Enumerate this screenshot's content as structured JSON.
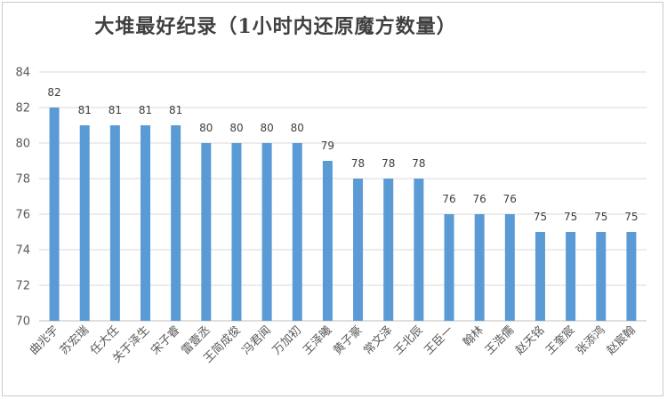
{
  "chart_data": {
    "type": "bar",
    "title": "大堆最好纪录（1小时内还原魔方数量）",
    "xlabel": "",
    "ylabel": "",
    "ylim": [
      70,
      84
    ],
    "yticks": [
      70,
      72,
      74,
      76,
      78,
      80,
      82,
      84
    ],
    "grid": true,
    "legend": "none",
    "bar_color": "#5b9bd5",
    "categories": [
      "曲兆宇",
      "苏宏瑞",
      "任大任",
      "关于泽生",
      "宋子睿",
      "雷壹丞",
      "王简成俊",
      "冯君闻",
      "万加初",
      "王泽曦",
      "黄子豪",
      "常文泽",
      "王北辰",
      "王臣一",
      "翰林",
      "王浩儒",
      "赵天铭",
      "王奎宸",
      "张添鸿",
      "赵宸翰"
    ],
    "values": [
      82,
      81,
      81,
      81,
      81,
      80,
      80,
      80,
      80,
      79,
      78,
      78,
      78,
      76,
      76,
      76,
      75,
      75,
      75,
      75
    ]
  }
}
